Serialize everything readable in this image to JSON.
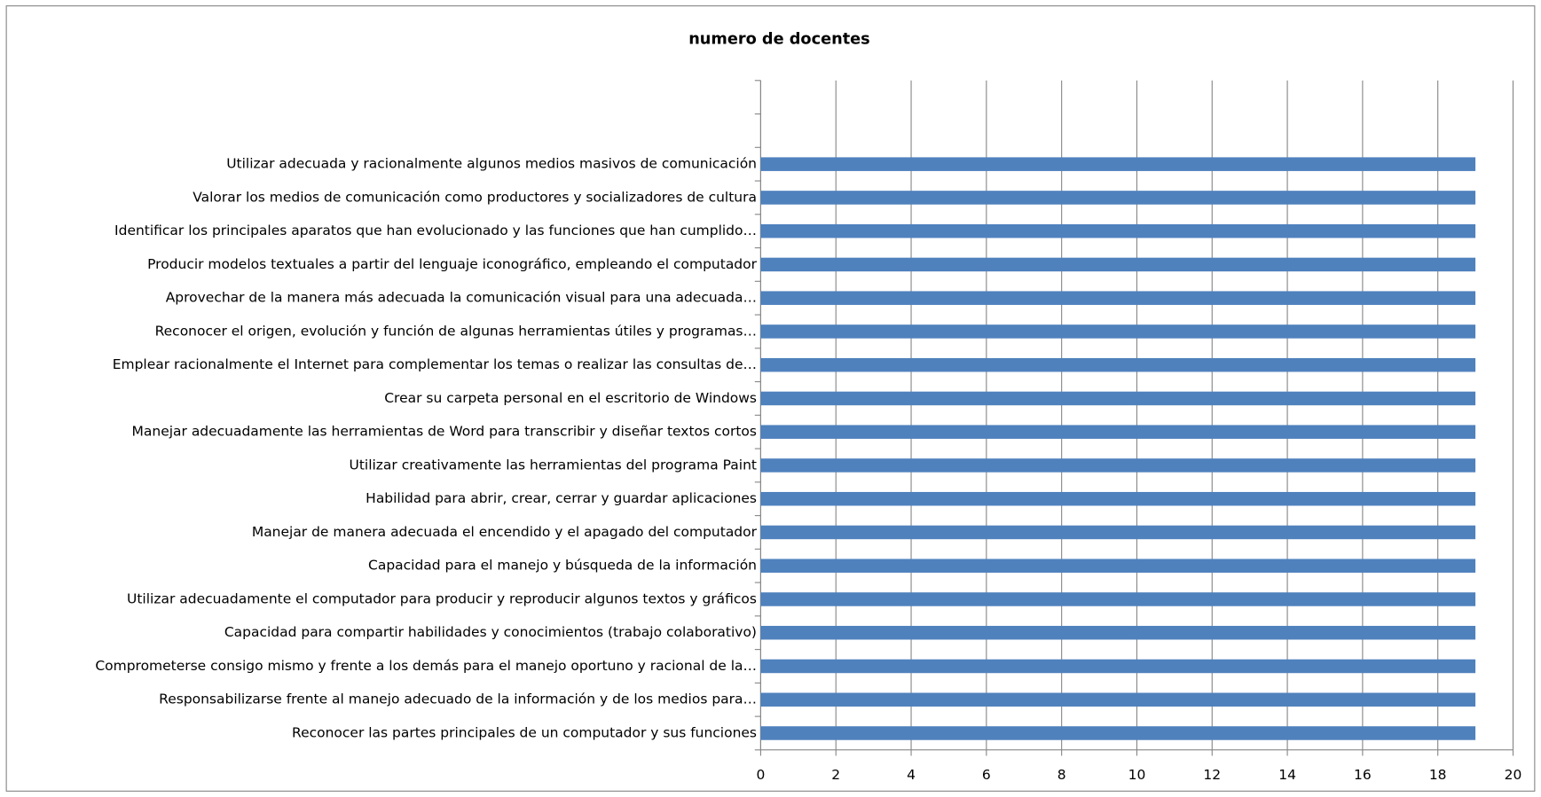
{
  "chart_data": {
    "type": "bar",
    "orientation": "horizontal",
    "title": "numero de docentes",
    "categories": [
      null,
      null,
      "Utilizar adecuada y racionalmente algunos medios masivos de comunicación",
      "Valorar  los medios de comunicación como productores y socializadores de cultura",
      "Identificar  los principales aparatos que han evolucionado y  las funciones que han cumplido…",
      "Producir modelos textuales a partir del lenguaje iconográfico, empleando el computador",
      "Aprovechar de la manera más adecuada la comunicación visual para una  adecuada…",
      "Reconocer el origen, evolución y función de algunas  herramientas útiles y programas…",
      "Emplear racionalmente el Internet para complementar los temas o realizar las consultas de…",
      "Crear su carpeta personal en el escritorio de Windows",
      "Manejar adecuadamente las herramientas de Word para transcribir y diseñar textos cortos",
      "Utilizar creativamente las herramientas del programa Paint",
      "Habilidad para abrir, crear, cerrar y guardar aplicaciones",
      "Manejar de manera adecuada el encendido y el apagado del computador",
      "Capacidad para el manejo y búsqueda de la información",
      "Utilizar adecuadamente el computador para producir y reproducir algunos textos y gráficos",
      "Capacidad para compartir habilidades y conocimientos (trabajo colaborativo)",
      "Comprometerse consigo mismo y frente a los demás para el manejo oportuno y racional de la…",
      "Responsabilizarse frente al manejo adecuado de la información y de los medios para…",
      "Reconocer las partes principales de  un computador y sus funciones"
    ],
    "values": [
      null,
      null,
      19,
      19,
      19,
      19,
      19,
      19,
      19,
      19,
      19,
      19,
      19,
      19,
      19,
      19,
      19,
      19,
      19,
      19
    ],
    "color": "#4f81bd",
    "xlim": [
      0,
      20
    ],
    "xticks": [
      0,
      2,
      4,
      6,
      8,
      10,
      12,
      14,
      16,
      18,
      20
    ],
    "grid": true
  }
}
